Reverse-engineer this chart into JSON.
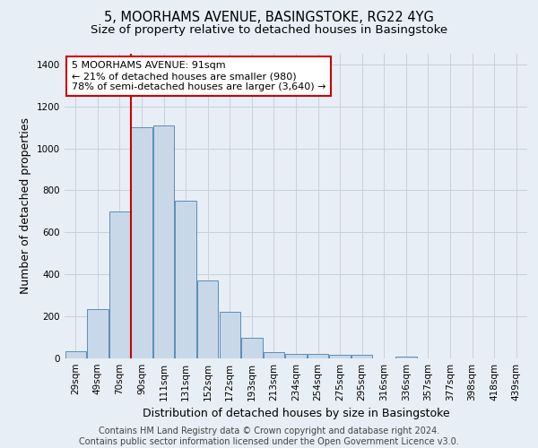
{
  "title": "5, MOORHAMS AVENUE, BASINGSTOKE, RG22 4YG",
  "subtitle": "Size of property relative to detached houses in Basingstoke",
  "xlabel": "Distribution of detached houses by size in Basingstoke",
  "ylabel": "Number of detached properties",
  "footer_line1": "Contains HM Land Registry data © Crown copyright and database right 2024.",
  "footer_line2": "Contains public sector information licensed under the Open Government Licence v3.0.",
  "bar_labels": [
    "29sqm",
    "49sqm",
    "70sqm",
    "90sqm",
    "111sqm",
    "131sqm",
    "152sqm",
    "172sqm",
    "193sqm",
    "213sqm",
    "234sqm",
    "254sqm",
    "275sqm",
    "295sqm",
    "316sqm",
    "336sqm",
    "357sqm",
    "377sqm",
    "398sqm",
    "418sqm",
    "439sqm"
  ],
  "bar_values": [
    35,
    235,
    700,
    1100,
    1110,
    750,
    370,
    220,
    100,
    30,
    20,
    20,
    15,
    15,
    0,
    10,
    0,
    0,
    0,
    0,
    0
  ],
  "bar_color": "#c8d8e8",
  "bar_edge_color": "#5b8db8",
  "grid_color": "#c8d0dc",
  "background_color": "#e8eef5",
  "vline_color": "#cc0000",
  "annotation_text": "5 MOORHAMS AVENUE: 91sqm\n← 21% of detached houses are smaller (980)\n78% of semi-detached houses are larger (3,640) →",
  "annotation_edge_color": "#cc0000",
  "ylim": [
    0,
    1450
  ],
  "yticks": [
    0,
    200,
    400,
    600,
    800,
    1000,
    1200,
    1400
  ],
  "title_fontsize": 10.5,
  "subtitle_fontsize": 9.5,
  "ylabel_fontsize": 9,
  "xlabel_fontsize": 9,
  "tick_fontsize": 7.5,
  "annotation_fontsize": 8,
  "footer_fontsize": 7
}
